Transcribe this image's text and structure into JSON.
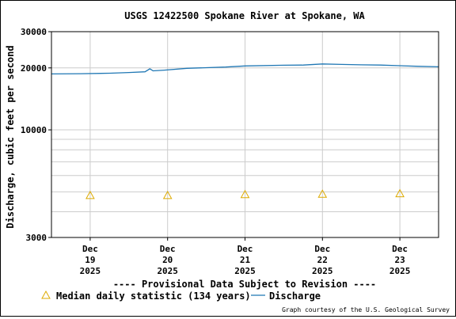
{
  "chart_data": {
    "type": "line",
    "title": "USGS 12422500 Spokane River at Spokane, WA",
    "ylabel": "Discharge, cubic feet per second",
    "xlabel": "",
    "yscale": "log",
    "ylim": [
      3000,
      30000
    ],
    "y_ticks": [
      3000,
      10000,
      20000,
      30000
    ],
    "y_ticks_labeled": [
      "3000",
      "10000",
      "20000",
      "30000"
    ],
    "y_minor_grid": [
      4000,
      5000,
      6000,
      7000,
      8000,
      9000
    ],
    "x_range": [
      "2025-12-18T12:00",
      "2025-12-23T12:00"
    ],
    "x_ticks": [
      {
        "date": "2025-12-19",
        "label_lines": [
          "Dec",
          "19",
          "2025"
        ]
      },
      {
        "date": "2025-12-20",
        "label_lines": [
          "Dec",
          "20",
          "2025"
        ]
      },
      {
        "date": "2025-12-21",
        "label_lines": [
          "Dec",
          "21",
          "2025"
        ]
      },
      {
        "date": "2025-12-22",
        "label_lines": [
          "Dec",
          "22",
          "2025"
        ]
      },
      {
        "date": "2025-12-23",
        "label_lines": [
          "Dec",
          "23",
          "2025"
        ]
      }
    ],
    "grid": true,
    "series": [
      {
        "name": "Discharge",
        "color": "#1f77b4",
        "marker": "line",
        "points": [
          [
            "2025-12-18T12:00",
            18700
          ],
          [
            "2025-12-18T21:00",
            18750
          ],
          [
            "2025-12-19T06:00",
            18850
          ],
          [
            "2025-12-19T12:00",
            19000
          ],
          [
            "2025-12-19T17:00",
            19150
          ],
          [
            "2025-12-19T18:30",
            19800
          ],
          [
            "2025-12-19T19:30",
            19350
          ],
          [
            "2025-12-19T23:00",
            19500
          ],
          [
            "2025-12-20T06:00",
            19900
          ],
          [
            "2025-12-20T12:00",
            20050
          ],
          [
            "2025-12-20T18:00",
            20200
          ],
          [
            "2025-12-21T00:00",
            20450
          ],
          [
            "2025-12-21T12:00",
            20600
          ],
          [
            "2025-12-21T18:00",
            20650
          ],
          [
            "2025-12-22T00:00",
            20900
          ],
          [
            "2025-12-22T06:00",
            20800
          ],
          [
            "2025-12-22T12:00",
            20700
          ],
          [
            "2025-12-22T18:00",
            20650
          ],
          [
            "2025-12-23T00:00",
            20500
          ],
          [
            "2025-12-23T06:00",
            20350
          ],
          [
            "2025-12-23T12:00",
            20250
          ]
        ]
      },
      {
        "name": "Median daily statistic (134 years)",
        "color": "#ddaa00",
        "marker": "triangle",
        "points": [
          [
            "2025-12-19T00:00",
            4800
          ],
          [
            "2025-12-20T00:00",
            4800
          ],
          [
            "2025-12-21T00:00",
            4850
          ],
          [
            "2025-12-22T00:00",
            4870
          ],
          [
            "2025-12-23T00:00",
            4900
          ]
        ]
      }
    ]
  },
  "notices": {
    "provisional": "---- Provisional Data Subject to Revision ----",
    "provisional_color": "#dd0000",
    "courtesy": "Graph courtesy of the U.S. Geological Survey"
  }
}
